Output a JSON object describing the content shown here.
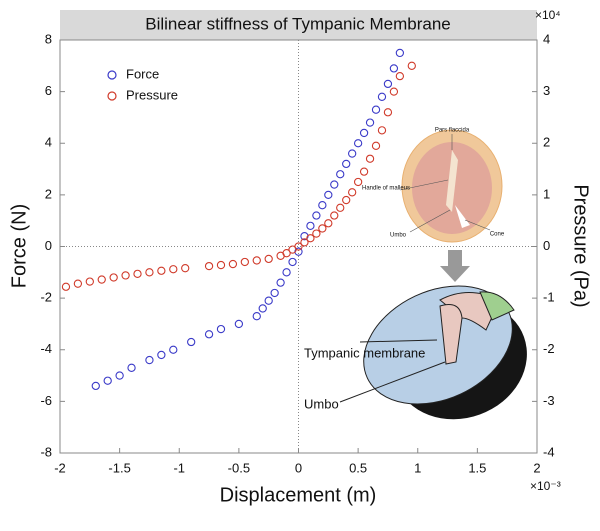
{
  "chart_data": {
    "type": "scatter",
    "title": "Bilinear stiffness of Tympanic Membrane",
    "x_label": "Displacement (m)",
    "y_label": "Force (N)",
    "y2_label": "Pressure (Pa)",
    "x_exponent": "×10⁻³",
    "y2_exponent": "×10⁴",
    "xlim": [
      -2,
      2
    ],
    "xticks": [
      -2,
      -1.5,
      -1,
      -0.5,
      0,
      0.5,
      1,
      1.5,
      2
    ],
    "ylim": [
      -8,
      8
    ],
    "yticks": [
      -8,
      -6,
      -4,
      -2,
      0,
      2,
      4,
      6,
      8
    ],
    "y2lim": [
      -4,
      4
    ],
    "y2ticks": [
      -4,
      -3,
      -2,
      -1,
      0,
      1,
      2,
      3,
      4
    ],
    "legend": "upper left",
    "series": [
      {
        "name": "Force",
        "color": "#3a3ac8",
        "x": [
          -1.7,
          -1.6,
          -1.5,
          -1.4,
          -1.25,
          -1.15,
          -1.05,
          -0.9,
          -0.75,
          -0.65,
          -0.5,
          -0.35,
          -0.3,
          -0.25,
          -0.2,
          -0.15,
          -0.1,
          -0.05,
          0,
          0.05,
          0.1,
          0.15,
          0.2,
          0.25,
          0.3,
          0.35,
          0.4,
          0.45,
          0.5,
          0.55,
          0.6,
          0.65,
          0.7,
          0.75,
          0.8,
          0.85
        ],
        "values": [
          -5.4,
          -5.2,
          -5.0,
          -4.7,
          -4.4,
          -4.2,
          -4.0,
          -3.7,
          -3.4,
          -3.2,
          -3.0,
          -2.7,
          -2.4,
          -2.1,
          -1.8,
          -1.4,
          -1.0,
          -0.6,
          -0.2,
          0.4,
          0.8,
          1.2,
          1.6,
          2.0,
          2.4,
          2.8,
          3.2,
          3.6,
          4.0,
          4.4,
          4.8,
          5.3,
          5.8,
          6.3,
          6.9,
          7.5
        ]
      },
      {
        "name": "Pressure",
        "color": "#d03a2a",
        "axis": "y2",
        "x": [
          -1.95,
          -1.85,
          -1.75,
          -1.65,
          -1.55,
          -1.45,
          -1.35,
          -1.25,
          -1.15,
          -1.05,
          -0.95,
          -0.75,
          -0.65,
          -0.55,
          -0.45,
          -0.35,
          -0.25,
          -0.15,
          -0.1,
          -0.05,
          0,
          0.05,
          0.1,
          0.15,
          0.2,
          0.25,
          0.3,
          0.35,
          0.4,
          0.45,
          0.5,
          0.55,
          0.6,
          0.65,
          0.7,
          0.75,
          0.8,
          0.85,
          0.95
        ],
        "values": [
          -0.78,
          -0.72,
          -0.68,
          -0.64,
          -0.6,
          -0.56,
          -0.53,
          -0.5,
          -0.47,
          -0.44,
          -0.42,
          -0.38,
          -0.36,
          -0.34,
          -0.3,
          -0.27,
          -0.24,
          -0.18,
          -0.13,
          -0.06,
          0,
          0.08,
          0.16,
          0.25,
          0.35,
          0.45,
          0.6,
          0.75,
          0.9,
          1.05,
          1.25,
          1.45,
          1.7,
          1.95,
          2.25,
          2.6,
          3.0,
          3.3,
          3.5
        ]
      }
    ],
    "annotations": [
      "Pars flaccida",
      "Handle of malleus",
      "Umbo",
      "Cone",
      "Tympanic membrane",
      "Umbo"
    ]
  }
}
